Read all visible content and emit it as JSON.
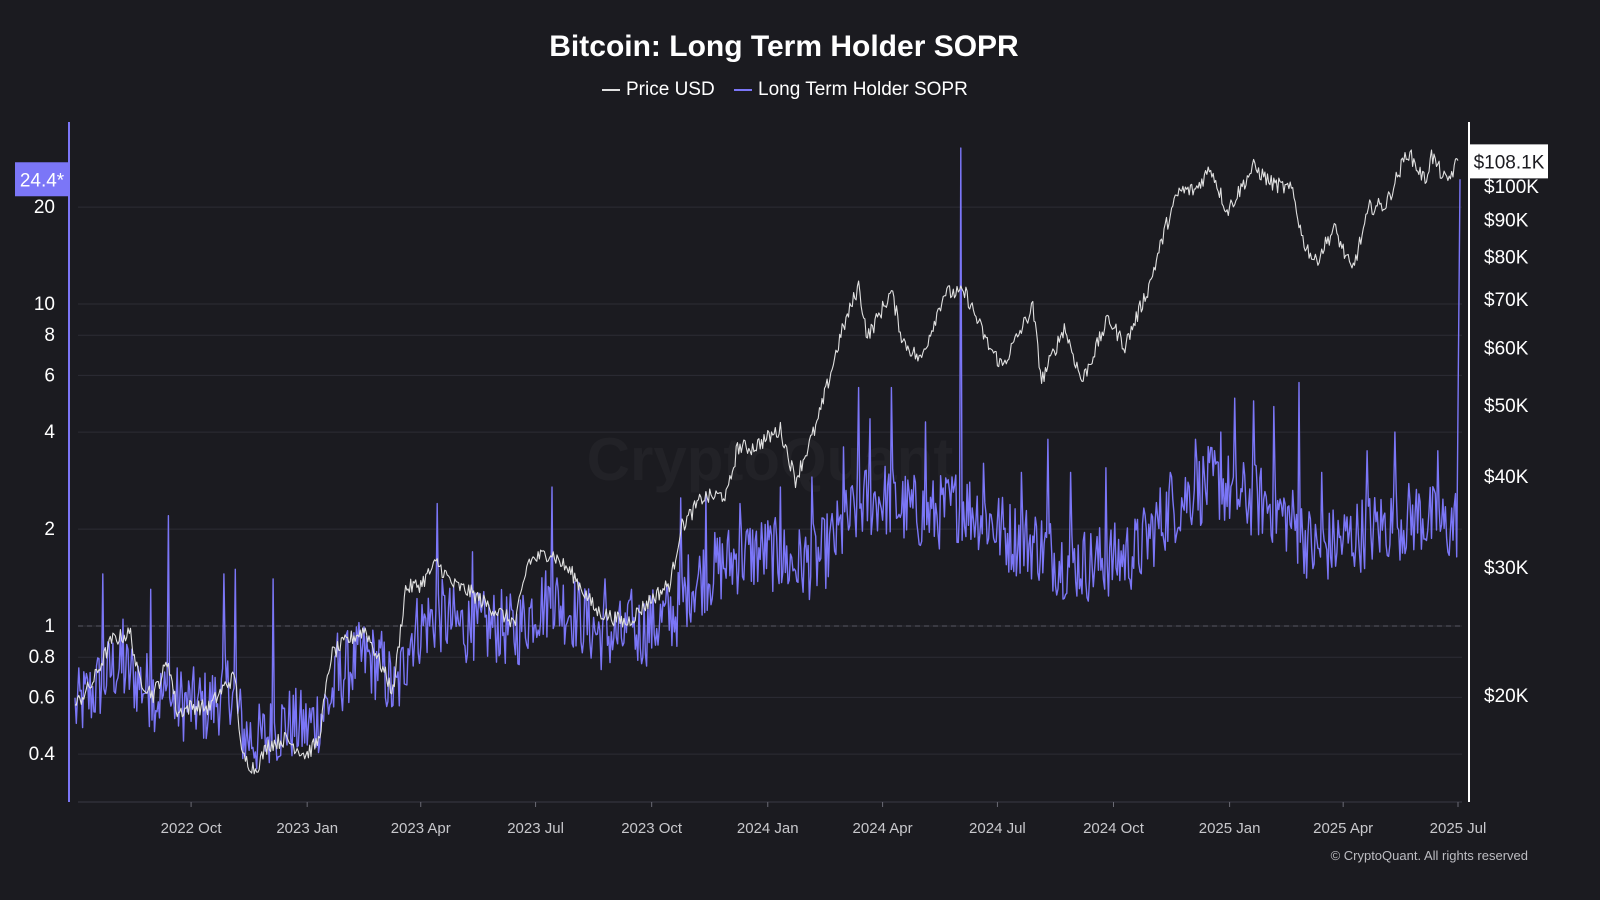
{
  "chart_data": {
    "type": "line",
    "title": "Bitcoin: Long Term Holder SOPR",
    "legend": [
      {
        "label": "Price USD",
        "color": "#e0e0e0"
      },
      {
        "label": "Long Term Holder SOPR",
        "color": "#7b76f7"
      }
    ],
    "legend_position": "top-center",
    "x_ticks": [
      "2022 Oct",
      "2023 Jan",
      "2023 Apr",
      "2023 Jul",
      "2023 Oct",
      "2024 Jan",
      "2024 Apr",
      "2024 Jul",
      "2024 Oct",
      "2025 Jan",
      "2025 Apr",
      "2025 Jul"
    ],
    "x_range": [
      "2022-07-01",
      "2025-07-01"
    ],
    "left_axis": {
      "scale": "log",
      "ticks": [
        "0.4",
        "0.6",
        "0.8",
        "1",
        "2",
        "4",
        "6",
        "8",
        "10",
        "20"
      ],
      "range": [
        0.3,
        30
      ],
      "current_value_label": "24.4*",
      "reference_line": 1
    },
    "right_axis": {
      "scale": "log",
      "ticks": [
        "$20K",
        "$30K",
        "$40K",
        "$50K",
        "$60K",
        "$70K",
        "$80K",
        "$90K",
        "$100K"
      ],
      "range": [
        15000,
        115000
      ],
      "current_value_label": "$108.1K"
    },
    "grid": "horizontal",
    "series": [
      {
        "name": "Price USD",
        "color": "#e0e0e0",
        "points": [
          [
            "2022-07-01",
            19300
          ],
          [
            "2022-07-15",
            20800
          ],
          [
            "2022-07-30",
            23800
          ],
          [
            "2022-08-14",
            24300
          ],
          [
            "2022-08-20",
            21200
          ],
          [
            "2022-09-01",
            20000
          ],
          [
            "2022-09-13",
            22300
          ],
          [
            "2022-09-20",
            18900
          ],
          [
            "2022-10-01",
            19300
          ],
          [
            "2022-10-15",
            19200
          ],
          [
            "2022-10-29",
            20700
          ],
          [
            "2022-11-05",
            21200
          ],
          [
            "2022-11-10",
            16500
          ],
          [
            "2022-11-21",
            15800
          ],
          [
            "2022-12-01",
            17100
          ],
          [
            "2022-12-15",
            17400
          ],
          [
            "2022-12-31",
            16550
          ],
          [
            "2023-01-10",
            17300
          ],
          [
            "2023-01-20",
            22700
          ],
          [
            "2023-02-01",
            23700
          ],
          [
            "2023-02-16",
            24600
          ],
          [
            "2023-03-10",
            20200
          ],
          [
            "2023-03-20",
            28000
          ],
          [
            "2023-04-01",
            28400
          ],
          [
            "2023-04-14",
            30400
          ],
          [
            "2023-04-26",
            28400
          ],
          [
            "2023-05-10",
            27700
          ],
          [
            "2023-05-25",
            26500
          ],
          [
            "2023-06-15",
            25100
          ],
          [
            "2023-06-25",
            30500
          ],
          [
            "2023-07-13",
            31400
          ],
          [
            "2023-07-31",
            29200
          ],
          [
            "2023-08-18",
            26100
          ],
          [
            "2023-09-11",
            25100
          ],
          [
            "2023-09-30",
            27000
          ],
          [
            "2023-10-16",
            28500
          ],
          [
            "2023-10-24",
            33900
          ],
          [
            "2023-11-10",
            37300
          ],
          [
            "2023-11-30",
            37700
          ],
          [
            "2023-12-08",
            43800
          ],
          [
            "2023-12-20",
            43700
          ],
          [
            "2024-01-11",
            46300
          ],
          [
            "2024-01-23",
            39500
          ],
          [
            "2024-02-09",
            47100
          ],
          [
            "2024-02-28",
            62500
          ],
          [
            "2024-03-13",
            73000
          ],
          [
            "2024-03-20",
            62000
          ],
          [
            "2024-04-08",
            71600
          ],
          [
            "2024-04-17",
            61300
          ],
          [
            "2024-05-01",
            57600
          ],
          [
            "2024-05-20",
            71400
          ],
          [
            "2024-06-06",
            71100
          ],
          [
            "2024-06-24",
            60300
          ],
          [
            "2024-07-05",
            56600
          ],
          [
            "2024-07-29",
            68200
          ],
          [
            "2024-08-05",
            54000
          ],
          [
            "2024-08-23",
            64000
          ],
          [
            "2024-09-06",
            53900
          ],
          [
            "2024-09-27",
            65800
          ],
          [
            "2024-10-10",
            60300
          ],
          [
            "2024-10-29",
            72700
          ],
          [
            "2024-11-12",
            88500
          ],
          [
            "2024-11-22",
            98400
          ],
          [
            "2024-12-05",
            98800
          ],
          [
            "2024-12-17",
            106100
          ],
          [
            "2024-12-30",
            92300
          ],
          [
            "2025-01-20",
            106200
          ],
          [
            "2025-02-03",
            101000
          ],
          [
            "2025-02-20",
            98500
          ],
          [
            "2025-02-28",
            84300
          ],
          [
            "2025-03-10",
            78600
          ],
          [
            "2025-03-25",
            87500
          ],
          [
            "2025-04-08",
            76300
          ],
          [
            "2025-04-22",
            93400
          ],
          [
            "2025-05-05",
            94300
          ],
          [
            "2025-05-22",
            111600
          ],
          [
            "2025-06-05",
            101600
          ],
          [
            "2025-06-10",
            110200
          ],
          [
            "2025-06-22",
            101000
          ],
          [
            "2025-07-01",
            108100
          ]
        ]
      },
      {
        "name": "Long Term Holder SOPR",
        "color": "#7b76f7",
        "points": [
          [
            "2022-07-01",
            0.55
          ],
          [
            "2022-07-15",
            0.62
          ],
          [
            "2022-08-01",
            0.75
          ],
          [
            "2022-08-15",
            0.7
          ],
          [
            "2022-09-01",
            0.62
          ],
          [
            "2022-09-15",
            0.58
          ],
          [
            "2022-10-01",
            0.57
          ],
          [
            "2022-10-15",
            0.56
          ],
          [
            "2022-11-01",
            0.65
          ],
          [
            "2022-11-12",
            0.46
          ],
          [
            "2022-11-25",
            0.44
          ],
          [
            "2022-12-15",
            0.5
          ],
          [
            "2023-01-01",
            0.48
          ],
          [
            "2023-01-15",
            0.55
          ],
          [
            "2023-02-01",
            0.74
          ],
          [
            "2023-02-15",
            0.8
          ],
          [
            "2023-03-01",
            0.75
          ],
          [
            "2023-03-12",
            0.6
          ],
          [
            "2023-03-25",
            0.95
          ],
          [
            "2023-04-15",
            1.08
          ],
          [
            "2023-05-01",
            1.0
          ],
          [
            "2023-05-15",
            0.97
          ],
          [
            "2023-06-01",
            1.0
          ],
          [
            "2023-06-15",
            0.95
          ],
          [
            "2023-07-01",
            1.15
          ],
          [
            "2023-07-15",
            1.2
          ],
          [
            "2023-08-01",
            1.1
          ],
          [
            "2023-08-20",
            0.95
          ],
          [
            "2023-09-10",
            0.92
          ],
          [
            "2023-10-01",
            1.0
          ],
          [
            "2023-10-20",
            1.1
          ],
          [
            "2023-11-01",
            1.35
          ],
          [
            "2023-11-20",
            1.5
          ],
          [
            "2023-12-10",
            1.65
          ],
          [
            "2024-01-01",
            1.7
          ],
          [
            "2024-01-20",
            1.55
          ],
          [
            "2024-02-10",
            1.6
          ],
          [
            "2024-03-01",
            2.0
          ],
          [
            "2024-03-15",
            2.4
          ],
          [
            "2024-04-01",
            2.5
          ],
          [
            "2024-04-20",
            2.3
          ],
          [
            "2024-05-10",
            2.2
          ],
          [
            "2024-06-01",
            2.4
          ],
          [
            "2024-06-20",
            2.2
          ],
          [
            "2024-07-10",
            1.9
          ],
          [
            "2024-08-01",
            1.8
          ],
          [
            "2024-08-20",
            1.6
          ],
          [
            "2024-09-10",
            1.55
          ],
          [
            "2024-10-01",
            1.6
          ],
          [
            "2024-10-20",
            1.7
          ],
          [
            "2024-11-10",
            2.2
          ],
          [
            "2024-12-01",
            2.6
          ],
          [
            "2024-12-20",
            2.8
          ],
          [
            "2025-01-10",
            2.5
          ],
          [
            "2025-02-01",
            2.4
          ],
          [
            "2025-02-20",
            2.1
          ],
          [
            "2025-03-10",
            1.7
          ],
          [
            "2025-03-25",
            1.8
          ],
          [
            "2025-04-10",
            1.9
          ],
          [
            "2025-04-25",
            2.0
          ],
          [
            "2025-05-15",
            2.1
          ],
          [
            "2025-06-01",
            2.2
          ],
          [
            "2025-06-20",
            2.0
          ],
          [
            "2025-06-30",
            2.1
          ],
          [
            "2025-07-01",
            24.4
          ]
        ],
        "spikes": [
          [
            "2022-07-23",
            1.45
          ],
          [
            "2022-08-08",
            1.05
          ],
          [
            "2022-08-30",
            1.3
          ],
          [
            "2022-09-13",
            2.2
          ],
          [
            "2022-10-27",
            1.45
          ],
          [
            "2022-11-05",
            1.5
          ],
          [
            "2022-12-05",
            1.4
          ],
          [
            "2023-01-25",
            0.95
          ],
          [
            "2023-03-22",
            0.85
          ],
          [
            "2023-04-14",
            2.4
          ],
          [
            "2023-05-12",
            1.7
          ],
          [
            "2023-07-14",
            2.7
          ],
          [
            "2023-08-25",
            1.4
          ],
          [
            "2023-09-15",
            1.3
          ],
          [
            "2023-10-24",
            2.5
          ],
          [
            "2023-11-13",
            2.6
          ],
          [
            "2023-12-10",
            2.4
          ],
          [
            "2024-01-11",
            2.7
          ],
          [
            "2024-02-05",
            2.9
          ],
          [
            "2024-03-01",
            3.6
          ],
          [
            "2024-03-13",
            5.5
          ],
          [
            "2024-03-22",
            4.4
          ],
          [
            "2024-04-08",
            5.5
          ],
          [
            "2024-05-05",
            4.3
          ],
          [
            "2024-06-02",
            30.5
          ],
          [
            "2024-06-20",
            3.2
          ],
          [
            "2024-07-20",
            3.0
          ],
          [
            "2024-08-10",
            3.8
          ],
          [
            "2024-08-28",
            3.0
          ],
          [
            "2024-09-25",
            3.1
          ],
          [
            "2024-11-15",
            3.0
          ],
          [
            "2024-12-05",
            3.8
          ],
          [
            "2024-12-25",
            4.0
          ],
          [
            "2025-01-05",
            5.1
          ],
          [
            "2025-01-20",
            5.0
          ],
          [
            "2025-02-05",
            4.8
          ],
          [
            "2025-02-25",
            5.7
          ],
          [
            "2025-03-15",
            3.0
          ],
          [
            "2025-04-20",
            3.5
          ],
          [
            "2025-05-12",
            4.0
          ],
          [
            "2025-06-15",
            3.5
          ]
        ]
      }
    ]
  },
  "copyright": "© CryptoQuant. All rights reserved",
  "watermark": "CryptoQuant"
}
